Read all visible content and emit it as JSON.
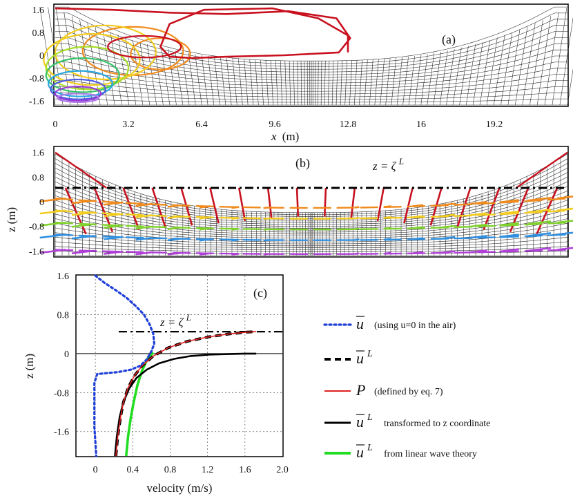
{
  "figure": {
    "panels": [
      "(a)",
      "(b)",
      "(c)"
    ]
  },
  "chart_data": [
    {
      "id": "a",
      "type": "line",
      "panel_label": "(a)",
      "title": "",
      "xlabel_var": "x",
      "xlabel_unit": "(m)",
      "x_ticks": [
        "0",
        "3.2",
        "6.4",
        "9.6",
        "12.8",
        "16",
        "19.2"
      ],
      "y_ticks": [
        "1.6",
        "0.8",
        "0",
        "-0.8",
        "-1.6"
      ],
      "xlim": [
        0,
        22.4
      ],
      "ylim": [
        -1.75,
        1.75
      ],
      "description_series": "particle trajectory loops at several initial depths over a wave-following mesh",
      "series_colors": [
        "#c8101e",
        "#f08a1c",
        "#f2cc1e",
        "#a8de28",
        "#36c36a",
        "#2aa8e0",
        "#4e5ee0",
        "#9a3cd6",
        "#b07be8"
      ]
    },
    {
      "id": "b",
      "type": "line",
      "panel_label": "(b)",
      "ylabel": "z (m)",
      "y_ticks": [
        "1.6",
        "0.8",
        "0",
        "-0.8",
        "-1.6"
      ],
      "ylim": [
        -1.75,
        1.75
      ],
      "annotation_lhs": "z = ",
      "annotation_sym": "ζ",
      "annotation_sup": "L",
      "mean_level": 0.45,
      "level_colors": [
        "#c8101e",
        "#f08a1c",
        "#f2cc1e",
        "#7fd22c",
        "#2f8fe0",
        "#b040d8"
      ],
      "level_depths": [
        0.45,
        -0.2,
        -0.55,
        -0.9,
        -1.25,
        -1.7
      ]
    },
    {
      "id": "c",
      "type": "line",
      "panel_label": "(c)",
      "xlabel": "velocity (m/s)",
      "ylabel": "z (m)",
      "x_ticks": [
        "0",
        "0.4",
        "0.8",
        "1.2",
        "1.6",
        "2.0"
      ],
      "x_tick_values": [
        0,
        0.4,
        0.8,
        1.2,
        1.6,
        2.0
      ],
      "y_ticks": [
        "1.6",
        "0.8",
        "0",
        "-0.8",
        "-1.6"
      ],
      "y_tick_values": [
        1.6,
        0.8,
        0,
        -0.8,
        -1.6
      ],
      "xlim": [
        -0.2,
        2.0
      ],
      "ylim": [
        -2.1,
        1.6
      ],
      "annotation_lhs": "z = ",
      "annotation_sym": "ζ",
      "annotation_sup": "L",
      "mean_level": 0.45,
      "series": [
        {
          "name": "u_bar",
          "label_sym": "u",
          "label_sup": "",
          "label_text": "(using u=0 in the air)",
          "color": "#1f3fd8",
          "style": "dotted",
          "x": [
            0.0,
            0.1,
            0.22,
            0.33,
            0.43,
            0.52,
            0.58,
            0.62,
            0.63,
            0.6,
            0.55,
            0.48,
            0.38,
            0.24,
            0.12,
            0.02,
            -0.01,
            -0.01,
            -0.01,
            -0.01,
            0.0,
            0.01
          ],
          "y": [
            1.6,
            1.45,
            1.3,
            1.15,
            0.98,
            0.8,
            0.6,
            0.4,
            0.2,
            0.05,
            -0.12,
            -0.25,
            -0.33,
            -0.38,
            -0.4,
            -0.42,
            -0.6,
            -0.9,
            -1.2,
            -1.5,
            -1.8,
            -2.1
          ]
        },
        {
          "name": "u_L",
          "label_sym": "u",
          "label_sup": "L",
          "label_text": "",
          "color": "#000000",
          "style": "dashed",
          "x": [
            0.22,
            0.24,
            0.27,
            0.3,
            0.35,
            0.42,
            0.5,
            0.62,
            0.78,
            0.98,
            1.2,
            1.42,
            1.62,
            1.72
          ],
          "y": [
            -2.1,
            -1.7,
            -1.3,
            -1.0,
            -0.7,
            -0.45,
            -0.25,
            -0.05,
            0.12,
            0.25,
            0.34,
            0.4,
            0.44,
            0.45
          ]
        },
        {
          "name": "P",
          "label_sym": "P",
          "label_sup": "",
          "label_text": "(defined by eq. 7)",
          "color": "#e02020",
          "style": "solid",
          "x": [
            0.22,
            0.24,
            0.27,
            0.3,
            0.35,
            0.42,
            0.5,
            0.62,
            0.78,
            0.98,
            1.2,
            1.42,
            1.62,
            1.72
          ],
          "y": [
            -2.1,
            -1.7,
            -1.3,
            -1.0,
            -0.7,
            -0.45,
            -0.25,
            -0.05,
            0.12,
            0.25,
            0.34,
            0.4,
            0.44,
            0.45
          ]
        },
        {
          "name": "u_L_z",
          "label_sym": "u",
          "label_sup": "L",
          "label_text": "transformed to z coordinate",
          "color": "#000000",
          "style": "solid",
          "x": [
            0.21,
            0.23,
            0.26,
            0.3,
            0.36,
            0.44,
            0.55,
            0.68,
            0.84,
            1.02,
            1.22,
            1.42,
            1.6,
            1.72
          ],
          "y": [
            -2.1,
            -1.7,
            -1.3,
            -1.0,
            -0.72,
            -0.5,
            -0.33,
            -0.2,
            -0.11,
            -0.05,
            -0.02,
            -0.01,
            0.0,
            0.0
          ]
        },
        {
          "name": "u_L_linear",
          "label_sym": "u",
          "label_sup": "L",
          "label_text": "from linear wave theory",
          "color": "#22dd22",
          "style": "solid",
          "x": [
            0.33,
            0.35,
            0.38,
            0.41,
            0.45,
            0.5,
            0.56,
            0.62
          ],
          "y": [
            -2.1,
            -1.7,
            -1.3,
            -1.0,
            -0.65,
            -0.35,
            -0.1,
            0.02
          ]
        }
      ]
    }
  ]
}
